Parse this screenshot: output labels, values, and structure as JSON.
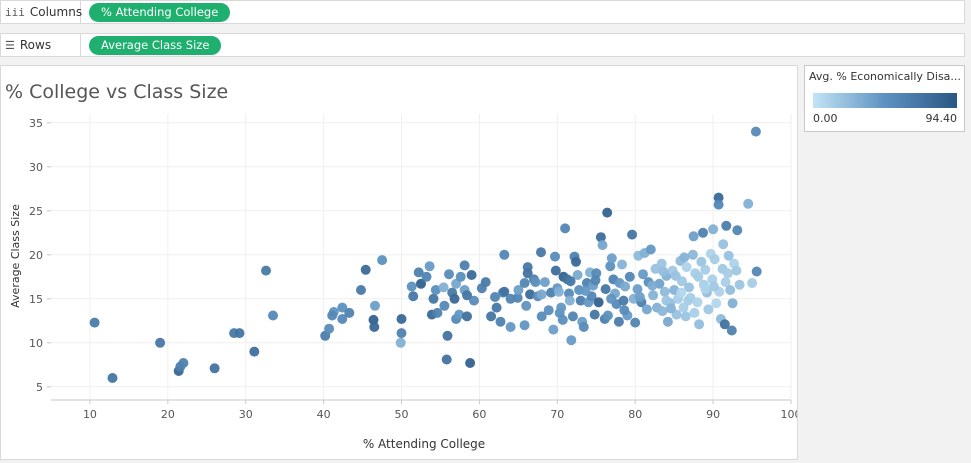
{
  "shelves": {
    "columns": {
      "label": "Columns",
      "icon": "iii",
      "pill": "% Attending College"
    },
    "rows": {
      "label": "Rows",
      "icon": "☰",
      "pill": "Average Class Size"
    }
  },
  "legend": {
    "title": "Avg. % Economically Disa...",
    "min_label": "0.00",
    "max_label": "94.40",
    "colors": [
      "#c3e4f6",
      "#5d92c0",
      "#2a5784"
    ]
  },
  "chart_data": {
    "type": "scatter",
    "title": "% College vs Class Size",
    "xlabel": "% Attending College",
    "ylabel": "Average Class Size",
    "xlim": [
      5,
      100
    ],
    "ylim": [
      3.5,
      36
    ],
    "xticks": [
      10,
      20,
      30,
      40,
      50,
      60,
      70,
      80,
      90,
      100
    ],
    "yticks": [
      5,
      10,
      15,
      20,
      25,
      30,
      35
    ],
    "grid": true,
    "color_field": "Avg. % Economically Disadvantaged",
    "color_range": [
      0,
      94.4
    ],
    "points": [
      [
        10.6,
        12.3,
        65
      ],
      [
        12.9,
        6.0,
        70
      ],
      [
        19.0,
        10.0,
        68
      ],
      [
        21.4,
        6.8,
        82
      ],
      [
        21.6,
        7.3,
        62
      ],
      [
        22.0,
        7.7,
        60
      ],
      [
        26.0,
        7.1,
        72
      ],
      [
        28.5,
        11.1,
        66
      ],
      [
        29.2,
        11.1,
        70
      ],
      [
        31.1,
        9.0,
        75
      ],
      [
        32.6,
        18.2,
        66
      ],
      [
        33.5,
        13.1,
        55
      ],
      [
        40.2,
        10.8,
        64
      ],
      [
        40.7,
        11.6,
        52
      ],
      [
        41.3,
        13.5,
        46
      ],
      [
        41.1,
        13.1,
        55
      ],
      [
        42.4,
        14.0,
        48
      ],
      [
        42.4,
        12.7,
        55
      ],
      [
        43.3,
        13.4,
        60
      ],
      [
        44.8,
        16.0,
        66
      ],
      [
        45.4,
        18.3,
        78
      ],
      [
        46.4,
        12.6,
        86
      ],
      [
        46.5,
        11.8,
        80
      ],
      [
        46.6,
        14.2,
        40
      ],
      [
        47.5,
        19.4,
        48
      ],
      [
        49.9,
        10.0,
        30
      ],
      [
        50.0,
        12.7,
        80
      ],
      [
        50.0,
        11.1,
        60
      ],
      [
        51.3,
        16.4,
        48
      ],
      [
        51.5,
        15.3,
        68
      ],
      [
        52.2,
        18.0,
        62
      ],
      [
        52.5,
        16.7,
        86
      ],
      [
        53.6,
        18.7,
        42
      ],
      [
        53.2,
        17.5,
        58
      ],
      [
        54.1,
        15.0,
        70
      ],
      [
        53.9,
        13.2,
        78
      ],
      [
        54.4,
        16.0,
        50
      ],
      [
        54.6,
        13.4,
        60
      ],
      [
        55.4,
        16.3,
        30
      ],
      [
        55.5,
        14.2,
        55
      ],
      [
        55.9,
        10.8,
        72
      ],
      [
        55.8,
        8.1,
        72
      ],
      [
        56.1,
        17.8,
        52
      ],
      [
        56.5,
        15.7,
        66
      ],
      [
        56.8,
        15.0,
        80
      ],
      [
        57.0,
        16.7,
        35
      ],
      [
        57.0,
        12.7,
        55
      ],
      [
        57.4,
        13.2,
        44
      ],
      [
        57.6,
        17.5,
        50
      ],
      [
        58.1,
        18.8,
        62
      ],
      [
        58.1,
        16.0,
        40
      ],
      [
        58.4,
        13.0,
        74
      ],
      [
        58.8,
        7.7,
        85
      ],
      [
        59.0,
        17.7,
        78
      ],
      [
        59.3,
        14.8,
        52
      ],
      [
        60.3,
        16.2,
        62
      ],
      [
        61.5,
        13.0,
        70
      ],
      [
        62.0,
        15.2,
        58
      ],
      [
        62.2,
        14.0,
        68
      ],
      [
        62.7,
        12.4,
        60
      ],
      [
        63.0,
        15.7,
        52
      ],
      [
        63.2,
        15.8,
        72
      ],
      [
        63.2,
        20.0,
        56
      ],
      [
        64.0,
        11.8,
        44
      ],
      [
        64.9,
        15.1,
        58
      ],
      [
        65.0,
        16.0,
        40
      ],
      [
        65.8,
        12.0,
        45
      ],
      [
        65.8,
        16.8,
        56
      ],
      [
        66.2,
        18.6,
        68
      ],
      [
        66.2,
        17.9,
        72
      ],
      [
        66.5,
        15.5,
        78
      ],
      [
        67.0,
        17.2,
        60
      ],
      [
        67.2,
        16.9,
        48
      ],
      [
        67.5,
        15.3,
        52
      ],
      [
        67.9,
        20.3,
        68
      ],
      [
        68.0,
        15.5,
        34
      ],
      [
        68.4,
        16.9,
        40
      ],
      [
        68.9,
        13.7,
        50
      ],
      [
        69.2,
        15.7,
        62
      ],
      [
        69.7,
        19.8,
        52
      ],
      [
        69.8,
        18.2,
        76
      ],
      [
        70.0,
        16.2,
        44
      ],
      [
        70.2,
        15.8,
        30
      ],
      [
        70.3,
        13.4,
        48
      ],
      [
        69.5,
        11.5,
        40
      ],
      [
        70.5,
        14.0,
        44
      ],
      [
        70.7,
        12.6,
        50
      ],
      [
        70.8,
        17.5,
        85
      ],
      [
        71.0,
        23.0,
        56
      ],
      [
        71.3,
        17.2,
        72
      ],
      [
        71.5,
        15.6,
        54
      ],
      [
        71.6,
        14.8,
        30
      ],
      [
        71.8,
        10.3,
        42
      ],
      [
        72.0,
        13.0,
        58
      ],
      [
        72.2,
        19.8,
        60
      ],
      [
        72.4,
        19.2,
        80
      ],
      [
        72.6,
        17.7,
        34
      ],
      [
        72.8,
        16.0,
        48
      ],
      [
        73.0,
        14.8,
        64
      ],
      [
        73.2,
        12.4,
        40
      ],
      [
        73.4,
        11.8,
        52
      ],
      [
        73.8,
        16.8,
        60
      ],
      [
        74.0,
        14.6,
        44
      ],
      [
        74.2,
        18.0,
        30
      ],
      [
        74.4,
        15.3,
        56
      ],
      [
        74.6,
        16.5,
        40
      ],
      [
        74.8,
        13.2,
        70
      ],
      [
        75.0,
        17.9,
        54
      ],
      [
        75.3,
        14.6,
        86
      ],
      [
        75.6,
        22.0,
        76
      ],
      [
        75.8,
        21.1,
        36
      ],
      [
        76.1,
        12.7,
        62
      ],
      [
        76.2,
        16.1,
        70
      ],
      [
        76.5,
        13.1,
        48
      ],
      [
        76.4,
        24.8,
        84
      ],
      [
        76.8,
        18.7,
        48
      ],
      [
        77.0,
        19.6,
        40
      ],
      [
        77.2,
        17.2,
        60
      ],
      [
        77.4,
        15.6,
        36
      ],
      [
        77.6,
        14.4,
        54
      ],
      [
        77.9,
        12.4,
        64
      ],
      [
        78.0,
        16.8,
        44
      ],
      [
        78.3,
        18.9,
        28
      ],
      [
        78.5,
        14.8,
        66
      ],
      [
        78.7,
        16.4,
        34
      ],
      [
        79.0,
        13.1,
        42
      ],
      [
        79.3,
        17.5,
        56
      ],
      [
        79.6,
        22.3,
        70
      ],
      [
        79.8,
        15.0,
        30
      ],
      [
        80.0,
        12.3,
        58
      ],
      [
        80.3,
        16.1,
        40
      ],
      [
        80.4,
        19.9,
        24
      ],
      [
        80.8,
        14.6,
        62
      ],
      [
        81.0,
        17.8,
        42
      ],
      [
        81.2,
        20.2,
        30
      ],
      [
        81.5,
        13.8,
        36
      ],
      [
        81.7,
        16.9,
        50
      ],
      [
        82.0,
        20.6,
        44
      ],
      [
        82.3,
        15.4,
        28
      ],
      [
        82.6,
        18.4,
        20
      ],
      [
        82.8,
        14.0,
        30
      ],
      [
        83.1,
        16.7,
        38
      ],
      [
        83.4,
        19.0,
        18
      ],
      [
        83.5,
        13.6,
        26
      ],
      [
        83.8,
        15.8,
        24
      ],
      [
        84.0,
        17.6,
        30
      ],
      [
        84.2,
        12.4,
        34
      ],
      [
        84.5,
        14.5,
        22
      ],
      [
        84.8,
        18.2,
        16
      ],
      [
        85.0,
        16.0,
        28
      ],
      [
        85.3,
        13.2,
        20
      ],
      [
        85.5,
        15.0,
        14
      ],
      [
        85.8,
        19.3,
        24
      ],
      [
        86.0,
        17.0,
        16
      ],
      [
        86.2,
        14.0,
        12
      ],
      [
        86.5,
        13.0,
        18
      ],
      [
        86.6,
        18.6,
        10
      ],
      [
        86.9,
        16.3,
        20
      ],
      [
        87.1,
        15.1,
        14
      ],
      [
        87.4,
        20.0,
        26
      ],
      [
        87.5,
        22.1,
        40
      ],
      [
        87.7,
        17.9,
        12
      ],
      [
        88.0,
        14.6,
        10
      ],
      [
        88.2,
        12.1,
        22
      ],
      [
        88.5,
        19.2,
        18
      ],
      [
        88.7,
        22.5,
        60
      ],
      [
        88.8,
        16.6,
        12
      ],
      [
        89.0,
        18.3,
        14
      ],
      [
        89.2,
        15.7,
        22
      ],
      [
        89.4,
        13.8,
        16
      ],
      [
        89.7,
        20.1,
        10
      ],
      [
        89.9,
        17.2,
        12
      ],
      [
        90.0,
        22.9,
        30
      ],
      [
        90.2,
        19.5,
        14
      ],
      [
        90.4,
        14.5,
        8
      ],
      [
        90.7,
        26.5,
        80
      ],
      [
        90.7,
        25.7,
        56
      ],
      [
        90.8,
        15.8,
        10
      ],
      [
        91.0,
        12.7,
        24
      ],
      [
        91.2,
        18.4,
        16
      ],
      [
        91.3,
        21.2,
        20
      ],
      [
        91.5,
        12.1,
        72
      ],
      [
        91.6,
        16.9,
        12
      ],
      [
        91.7,
        23.3,
        64
      ],
      [
        91.9,
        17.9,
        14
      ],
      [
        92.0,
        19.9,
        20
      ],
      [
        92.4,
        11.4,
        60
      ],
      [
        92.5,
        14.5,
        30
      ],
      [
        92.7,
        19.0,
        10
      ],
      [
        93.0,
        18.2,
        16
      ],
      [
        93.1,
        22.8,
        56
      ],
      [
        93.4,
        16.6,
        18
      ],
      [
        94.5,
        25.8,
        30
      ],
      [
        95.0,
        16.8,
        14
      ],
      [
        95.6,
        18.1,
        56
      ],
      [
        95.5,
        34.0,
        54
      ],
      [
        64.0,
        15.0,
        58
      ],
      [
        66.0,
        14.2,
        46
      ],
      [
        68.0,
        13.0,
        52
      ],
      [
        60.8,
        16.9,
        66
      ],
      [
        58.4,
        15.4,
        70
      ],
      [
        86.8,
        14.8,
        14
      ],
      [
        85.2,
        17.6,
        20
      ],
      [
        84.0,
        14.8,
        18
      ],
      [
        87.6,
        13.4,
        12
      ],
      [
        89.0,
        16.1,
        10
      ],
      [
        82.2,
        16.5,
        32
      ],
      [
        80.6,
        15.2,
        40
      ],
      [
        78.6,
        13.7,
        52
      ],
      [
        76.9,
        15.0,
        46
      ],
      [
        74.9,
        17.1,
        58
      ],
      [
        73.6,
        15.9,
        44
      ],
      [
        71.7,
        17.0,
        66
      ],
      [
        83.6,
        18.1,
        22
      ],
      [
        85.9,
        15.7,
        8
      ],
      [
        88.1,
        17.5,
        14
      ],
      [
        90.1,
        16.4,
        16
      ],
      [
        92.2,
        16.0,
        22
      ],
      [
        86.3,
        19.7,
        28
      ],
      [
        84.6,
        13.9,
        28
      ]
    ]
  }
}
